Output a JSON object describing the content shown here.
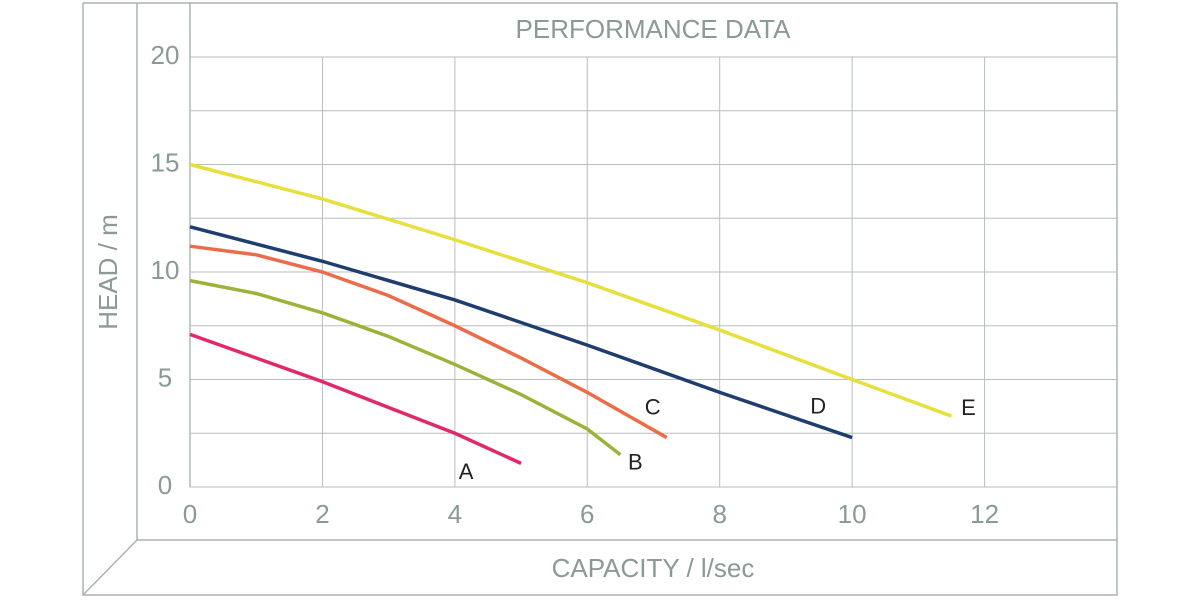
{
  "chart_data": {
    "type": "line",
    "title": "PERFORMANCE DATA",
    "x_label": "CAPACITY / l/sec",
    "y_label": "HEAD / m",
    "xlim": [
      0,
      14
    ],
    "xticks": [
      0,
      2,
      4,
      6,
      8,
      10,
      12
    ],
    "ylim": [
      0,
      20
    ],
    "yticks": [
      0,
      5,
      10,
      15,
      20
    ],
    "yminor_ticks": [
      2.5,
      7.5,
      12.5,
      17.5
    ],
    "grid": true,
    "series": [
      {
        "name": "A",
        "color": "#e0286a",
        "x": [
          0,
          1,
          2,
          3,
          4,
          5
        ],
        "values": [
          7.1,
          6.0,
          4.9,
          3.7,
          2.5,
          1.1
        ]
      },
      {
        "name": "B",
        "color": "#9bb33a",
        "x": [
          0,
          1,
          2,
          3,
          4,
          5,
          6,
          6.5
        ],
        "values": [
          9.6,
          9.0,
          8.1,
          7.0,
          5.7,
          4.3,
          2.7,
          1.5
        ]
      },
      {
        "name": "C",
        "color": "#ec6c4a",
        "x": [
          0,
          1,
          2,
          3,
          4,
          5,
          6,
          7.2
        ],
        "values": [
          11.2,
          10.8,
          10.0,
          8.9,
          7.5,
          6.0,
          4.4,
          2.3
        ]
      },
      {
        "name": "D",
        "color": "#1f3d6e",
        "x": [
          0,
          2,
          4,
          6,
          8,
          10
        ],
        "values": [
          12.1,
          10.5,
          8.7,
          6.6,
          4.4,
          2.3
        ]
      },
      {
        "name": "E",
        "color": "#e6df3c",
        "x": [
          0,
          2,
          4,
          6,
          8,
          10,
          11.5
        ],
        "values": [
          15,
          13.4,
          11.5,
          9.5,
          7.3,
          5.0,
          3.3
        ]
      }
    ]
  }
}
